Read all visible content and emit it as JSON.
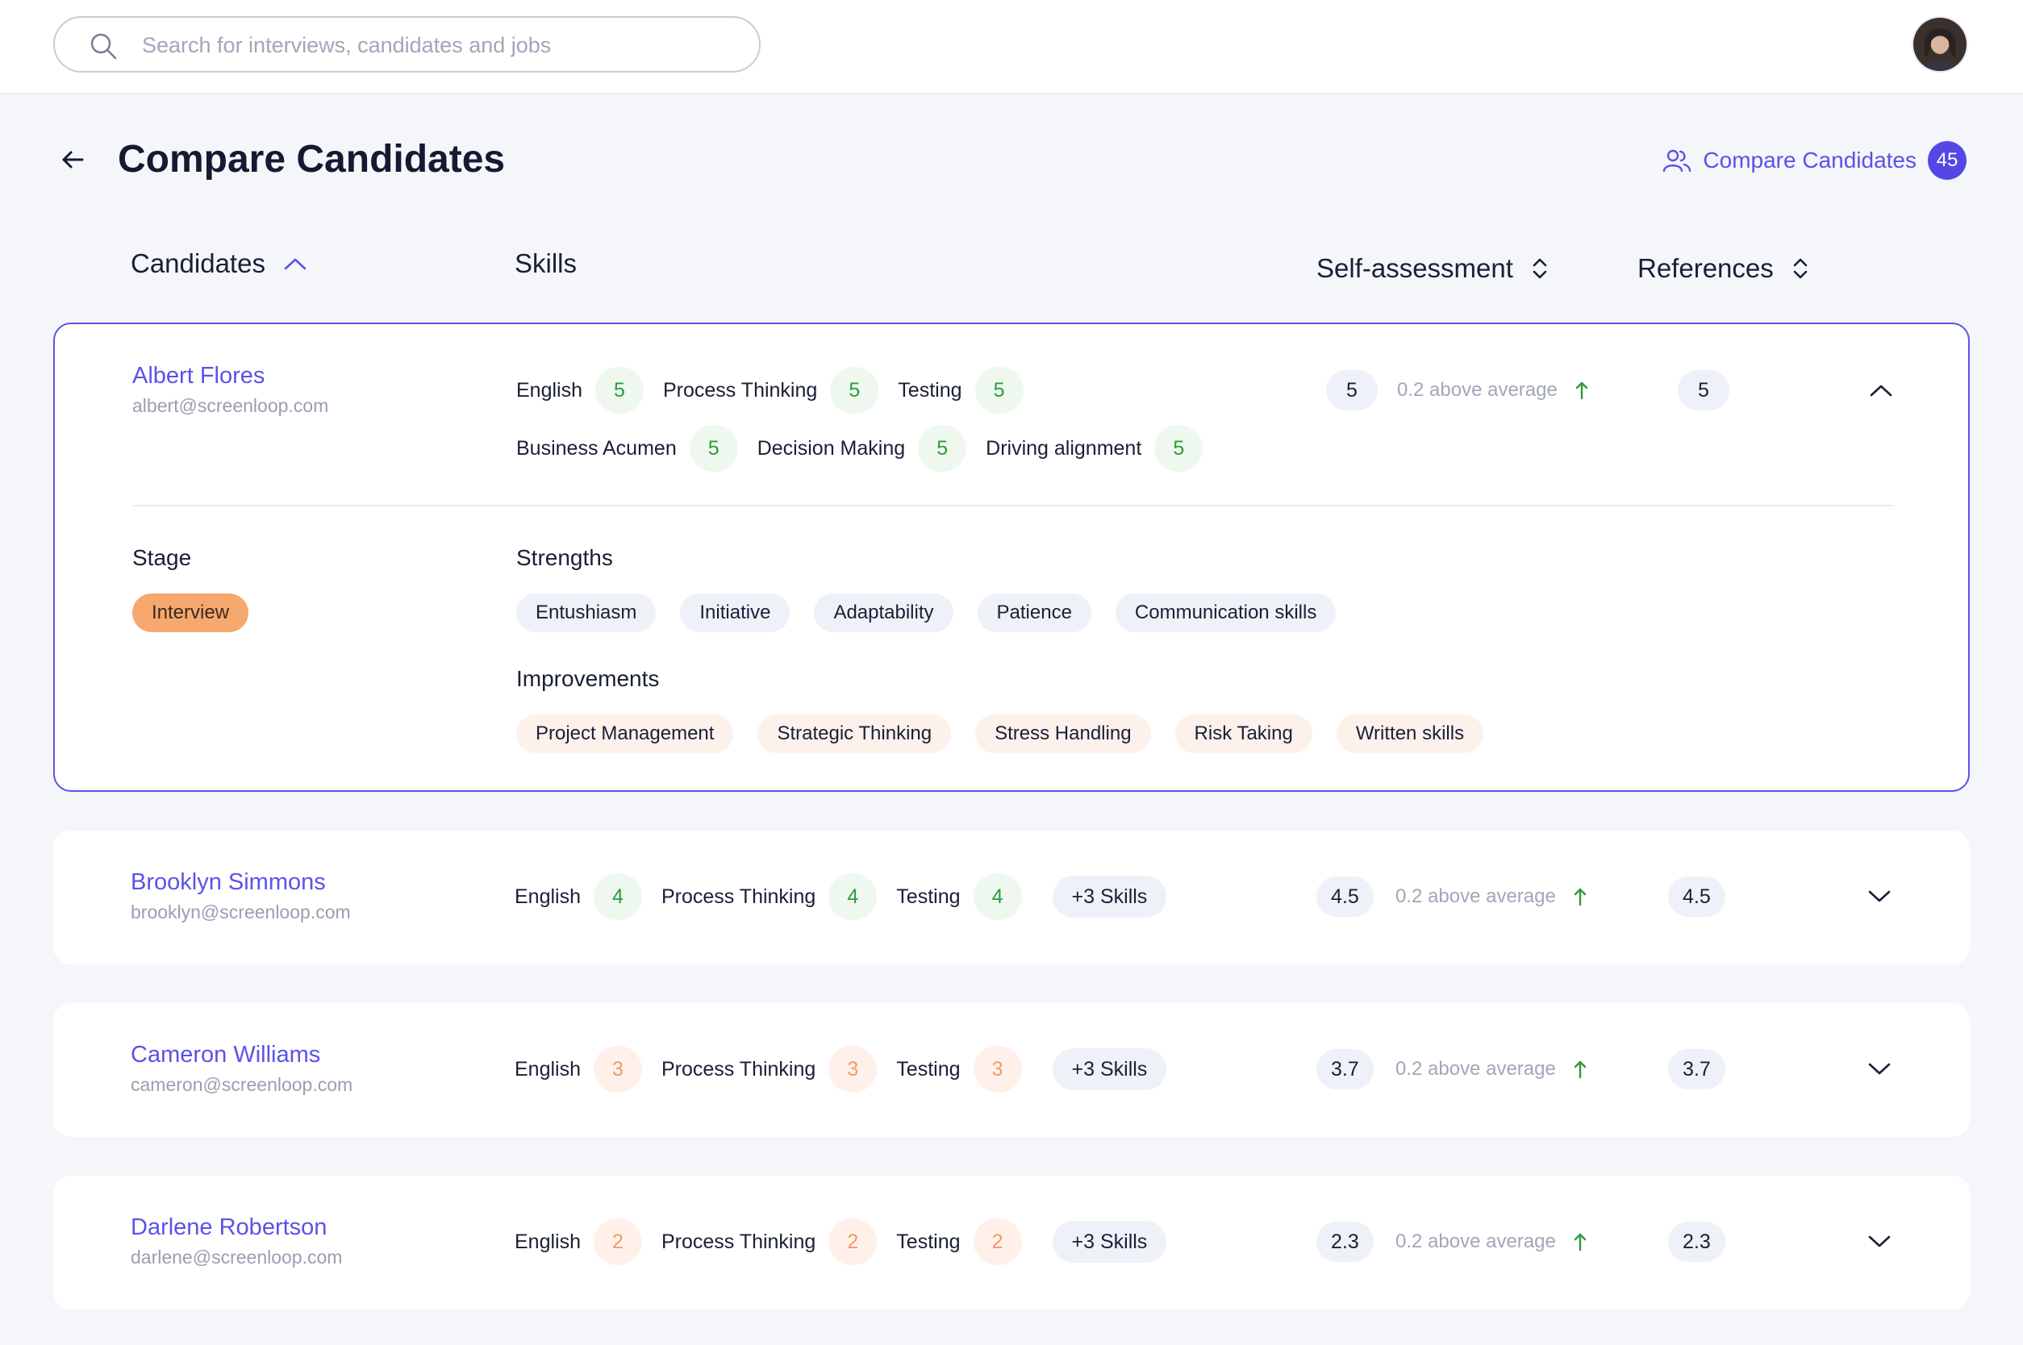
{
  "search": {
    "placeholder": "Search for interviews, candidates and jobs"
  },
  "header": {
    "title": "Compare Candidates",
    "compare_link_label": "Compare Candidates",
    "compare_count": "45"
  },
  "columns": {
    "candidates": "Candidates",
    "skills": "Skills",
    "self_assessment": "Self-assessment",
    "references": "References"
  },
  "colors": {
    "accent": "#5b52e8",
    "score_good": "#2e9b3a",
    "score_warn": "#f09a6c",
    "stage_interview": "#f7a86e"
  },
  "candidates": [
    {
      "name": "Albert Flores",
      "email": "albert@screenloop.com",
      "skills_row1": [
        {
          "label": "English",
          "score": "5"
        },
        {
          "label": "Process Thinking",
          "score": "5"
        },
        {
          "label": "Testing",
          "score": "5"
        }
      ],
      "skills_row2": [
        {
          "label": "Business Acumen",
          "score": "5"
        },
        {
          "label": "Decision Making",
          "score": "5"
        },
        {
          "label": "Driving alignment",
          "score": "5"
        }
      ],
      "self_assessment": "5",
      "avg_note": "0.2 above average",
      "references": "5",
      "stage_label": "Stage",
      "stage": "Interview",
      "strengths_label": "Strengths",
      "strengths": [
        "Entushiasm",
        "Initiative",
        "Adaptability",
        "Patience",
        "Communication skills"
      ],
      "improvements_label": "Improvements",
      "improvements": [
        "Project Management",
        "Strategic Thinking",
        "Stress Handling",
        "Risk Taking",
        "Written skills"
      ]
    },
    {
      "name": "Brooklyn Simmons",
      "email": "brooklyn@screenloop.com",
      "skills": [
        {
          "label": "English",
          "score": "4"
        },
        {
          "label": "Process Thinking",
          "score": "4"
        },
        {
          "label": "Testing",
          "score": "4"
        }
      ],
      "more_skills": "+3 Skills",
      "self_assessment": "4.5",
      "avg_note": "0.2 above average",
      "references": "4.5"
    },
    {
      "name": "Cameron Williams",
      "email": "cameron@screenloop.com",
      "skills": [
        {
          "label": "English",
          "score": "3"
        },
        {
          "label": "Process Thinking",
          "score": "3"
        },
        {
          "label": "Testing",
          "score": "3"
        }
      ],
      "more_skills": "+3 Skills",
      "self_assessment": "3.7",
      "avg_note": "0.2 above average",
      "references": "3.7"
    },
    {
      "name": "Darlene Robertson",
      "email": "darlene@screenloop.com",
      "skills": [
        {
          "label": "English",
          "score": "2"
        },
        {
          "label": "Process Thinking",
          "score": "2"
        },
        {
          "label": "Testing",
          "score": "2"
        }
      ],
      "more_skills": "+3 Skills",
      "self_assessment": "2.3",
      "avg_note": "0.2 above average",
      "references": "2.3"
    }
  ]
}
